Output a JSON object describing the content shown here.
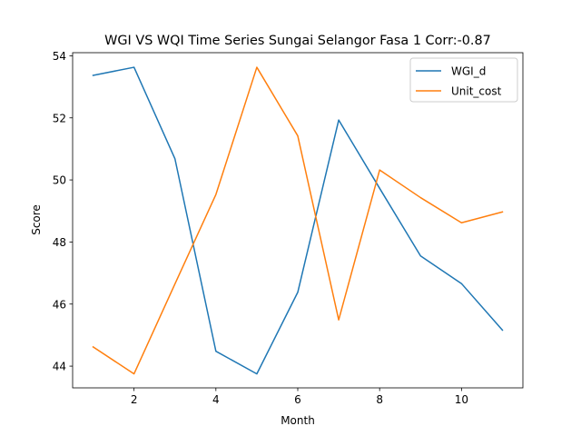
{
  "chart_data": {
    "type": "line",
    "title": "WGI VS WQI Time Series Sungai Selangor Fasa 1 Corr:-0.87",
    "xlabel": "Month",
    "ylabel": "Score",
    "x": [
      1,
      2,
      3,
      4,
      5,
      6,
      7,
      8,
      9,
      10,
      11
    ],
    "xlim": [
      0.5,
      11.5
    ],
    "ylim": [
      43.3,
      54.1
    ],
    "xticks": [
      2,
      4,
      6,
      8,
      10
    ],
    "yticks": [
      44,
      46,
      48,
      50,
      52,
      54
    ],
    "grid": false,
    "legend_position": "top-right",
    "series": [
      {
        "name": "WGI_d",
        "color": "#1f77b4",
        "values": [
          53.37,
          53.63,
          50.68,
          44.48,
          43.75,
          46.38,
          51.93,
          49.73,
          47.55,
          46.66,
          45.16
        ]
      },
      {
        "name": "Unit_cost",
        "color": "#ff7f0e",
        "values": [
          44.62,
          43.75,
          46.65,
          49.53,
          53.63,
          51.42,
          45.49,
          50.32,
          49.43,
          48.62,
          48.97
        ]
      }
    ]
  }
}
